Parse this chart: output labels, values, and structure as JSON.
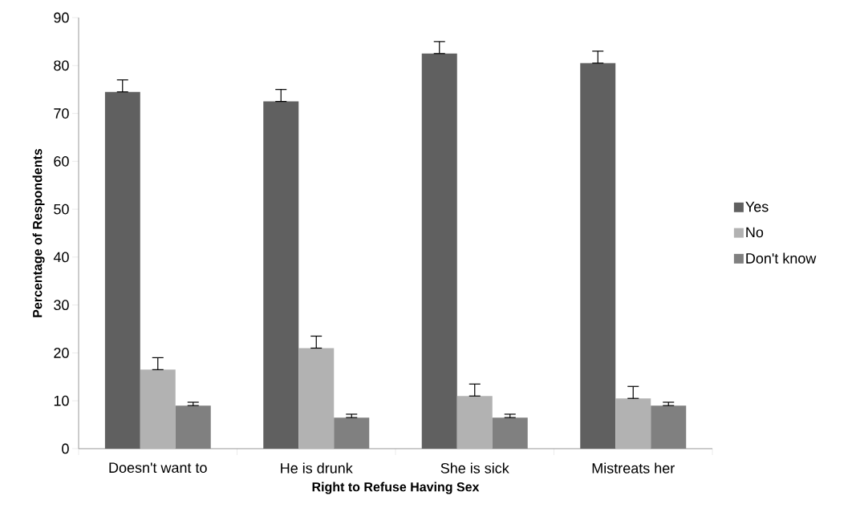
{
  "chart_data": {
    "type": "bar",
    "xlabel": "Right to Refuse Having Sex",
    "ylabel": "Percentage of Respondents",
    "categories": [
      "Doesn't want to",
      "He is drunk",
      "She is sick",
      "Mistreats her"
    ],
    "series": [
      {
        "name": "Yes",
        "color": "#606060",
        "values": [
          74.5,
          72.5,
          82.5,
          80.5
        ],
        "errors": [
          [
            74.5,
            77
          ],
          [
            72.5,
            75
          ],
          [
            82.5,
            85
          ],
          [
            80.5,
            83
          ]
        ]
      },
      {
        "name": "No",
        "color": "#b2b2b2",
        "values": [
          16.5,
          21,
          11,
          10.5
        ],
        "errors": [
          [
            16.5,
            19
          ],
          [
            21,
            23.5
          ],
          [
            11,
            13.5
          ],
          [
            10.5,
            13
          ]
        ]
      },
      {
        "name": "Don't know",
        "color": "#808080",
        "values": [
          9,
          6.5,
          6.5,
          9
        ],
        "errors": [
          [
            9,
            9.7
          ],
          [
            6.5,
            7.2
          ],
          [
            6.5,
            7.2
          ],
          [
            9,
            9.7
          ]
        ]
      }
    ],
    "ylim": [
      0,
      90
    ],
    "yticks": [
      0,
      10,
      20,
      30,
      40,
      50,
      60,
      70,
      80,
      90
    ],
    "grid": false,
    "legend": "right"
  }
}
